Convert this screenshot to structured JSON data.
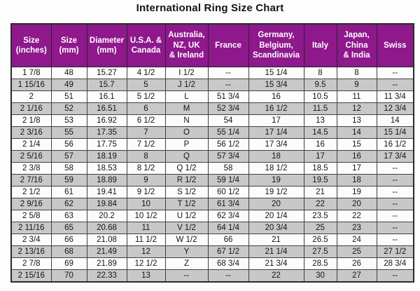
{
  "title": "International Ring Size Chart",
  "colors": {
    "header_bg": "#8e188c",
    "header_text": "#ffffff",
    "row_bg": "#fcfcfc",
    "row_alt_bg": "#c8c8c8",
    "border": "#404040"
  },
  "chart_data": {
    "type": "table",
    "title": "International Ring Size Chart",
    "columns": [
      "Size\n(inches)",
      "Size\n(mm)",
      "Diameter\n(mm)",
      "U.S.A. &\nCanada",
      "Australia,\nNZ, UK\n& Ireland",
      "France",
      "Germany,\nBelgium,\nScandinavia",
      "Italy",
      "Japan,\nChina\n& India",
      "Swiss"
    ],
    "rows": [
      [
        "1 7/8",
        "48",
        "15.27",
        "4 1/2",
        "I 1/2",
        "--",
        "15 1/4",
        "8",
        "8",
        "--"
      ],
      [
        "1 15/16",
        "49",
        "15.7",
        "5",
        "J 1/2",
        "--",
        "15 3/4",
        "9.5",
        "9",
        "--"
      ],
      [
        "2",
        "51",
        "16.1",
        "5 1/2",
        "L",
        "51 3/4",
        "16",
        "10.5",
        "11",
        "11 3/4"
      ],
      [
        "2 1/16",
        "52",
        "16.51",
        "6",
        "M",
        "52 3/4",
        "16 1/2",
        "11.5",
        "12",
        "12 3/4"
      ],
      [
        "2 1/8",
        "53",
        "16.92",
        "6 1/2",
        "N",
        "54",
        "17",
        "13",
        "13",
        "14"
      ],
      [
        "2 3/16",
        "55",
        "17.35",
        "7",
        "O",
        "55 1/4",
        "17 1/4",
        "14.5",
        "14",
        "15 1/4"
      ],
      [
        "2 1/4",
        "56",
        "17.75",
        "7 1/2",
        "P",
        "56 1/2",
        "17 3/4",
        "16",
        "15",
        "16 1/2"
      ],
      [
        "2 5/16",
        "57",
        "18.19",
        "8",
        "Q",
        "57 3/4",
        "18",
        "17",
        "16",
        "17 3/4"
      ],
      [
        "2 3/8",
        "58",
        "18.53",
        "8 1/2",
        "Q 1/2",
        "58",
        "18 1/2",
        "18.5",
        "17",
        "--"
      ],
      [
        "2 7/16",
        "59",
        "18.89",
        "9",
        "R 1/2",
        "59 1/4",
        "19",
        "19.5",
        "18",
        "--"
      ],
      [
        "2 1/2",
        "61",
        "19.41",
        "9 1/2",
        "S 1/2",
        "60 1/2",
        "19 1/2",
        "21",
        "19",
        "--"
      ],
      [
        "2 9/16",
        "62",
        "19.84",
        "10",
        "T 1/2",
        "61 3/4",
        "20",
        "22",
        "20",
        "--"
      ],
      [
        "2 5/8",
        "63",
        "20.2",
        "10 1/2",
        "U 1/2",
        "62 3/4",
        "20 1/4",
        "23.5",
        "22",
        "--"
      ],
      [
        "2 11/16",
        "65",
        "20.68",
        "11",
        "V 1/2",
        "64 1/4",
        "20 3/4",
        "25",
        "23",
        "--"
      ],
      [
        "2 3/4",
        "66",
        "21.08",
        "11 1/2",
        "W 1/2",
        "66",
        "21",
        "26.5",
        "24",
        "--"
      ],
      [
        "2 13/16",
        "68",
        "21.49",
        "12",
        "Y",
        "67 1/2",
        "21 1/4",
        "27.5",
        "25",
        "27 1/2"
      ],
      [
        "2 7/8",
        "69",
        "21.89",
        "12 1/2",
        "Z",
        "68 3/4",
        "21 3/4",
        "28.5",
        "26",
        "28 3/4"
      ],
      [
        "2 15/16",
        "70",
        "22.33",
        "13",
        "--",
        "--",
        "22",
        "30",
        "27",
        "--"
      ]
    ]
  }
}
